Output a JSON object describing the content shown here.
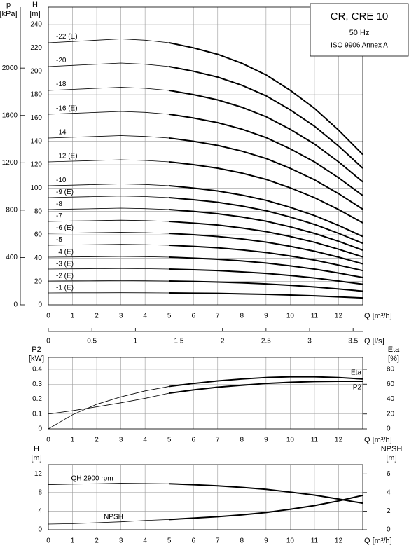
{
  "chart_data": [
    {
      "type": "line",
      "title": "CR, CRE 10",
      "subtitle": "50 Hz",
      "annotation": "ISO 9906 Annex A",
      "ylabel": "H",
      "ylabel_unit": "[m]",
      "y2label": "p",
      "y2label_unit": "[kPa]",
      "xlabel": "Q [m³/h]",
      "x2label": "Q [l/s]",
      "x": [
        0,
        1,
        2,
        3,
        4,
        5,
        6,
        7,
        8,
        9,
        10,
        11,
        12,
        13
      ],
      "xlim": [
        0,
        13
      ],
      "xticks": [
        0,
        1,
        2,
        3,
        4,
        5,
        6,
        7,
        8,
        9,
        10,
        11,
        12
      ],
      "x2lim": [
        0,
        3.611
      ],
      "x2ticks": [
        0.0,
        0.5,
        1.0,
        1.5,
        2.0,
        2.5,
        3.0,
        3.5
      ],
      "ylim": [
        0,
        255
      ],
      "yticks": [
        0,
        20,
        40,
        60,
        80,
        100,
        120,
        140,
        160,
        180,
        200,
        220,
        240
      ],
      "y2lim": [
        0,
        2516
      ],
      "y2ticks": [
        0,
        400,
        800,
        1200,
        1600,
        2000
      ],
      "grid": true,
      "color": "#000000",
      "series": [
        {
          "name": "-22 (E)",
          "values": [
            224.4,
            225.5,
            226.6,
            227.7,
            226.6,
            224.4,
            220,
            214.5,
            206.8,
            196.9,
            183.7,
            168.3,
            149.6,
            128.7
          ]
        },
        {
          "name": "-20",
          "values": [
            204,
            205,
            206,
            207,
            206,
            204,
            200,
            195,
            188,
            179,
            167,
            153,
            136,
            117
          ]
        },
        {
          "name": "-18",
          "values": [
            183.6,
            184.5,
            185.4,
            186.3,
            185.4,
            183.6,
            180,
            175.5,
            169.2,
            161.1,
            150.3,
            137.7,
            122.4,
            105.3
          ]
        },
        {
          "name": "-16 (E)",
          "values": [
            163.2,
            164,
            164.8,
            165.6,
            164.8,
            163.2,
            160,
            156,
            150.4,
            143.2,
            133.6,
            122.4,
            108.8,
            93.6
          ]
        },
        {
          "name": "-14",
          "values": [
            142.8,
            143.5,
            144.2,
            144.9,
            144.2,
            142.8,
            140,
            136.5,
            131.6,
            125.3,
            116.9,
            107.1,
            95.2,
            81.9
          ]
        },
        {
          "name": "-12 (E)",
          "values": [
            122.4,
            123,
            123.6,
            124.2,
            123.6,
            122.4,
            120,
            117,
            112.8,
            107.4,
            100.2,
            91.8,
            81.6,
            70.2
          ]
        },
        {
          "name": "-10",
          "values": [
            102,
            102.5,
            103,
            103.5,
            103,
            102,
            100,
            97.5,
            94,
            89.5,
            83.5,
            76.5,
            68,
            58.5
          ]
        },
        {
          "name": "-9 (E)",
          "values": [
            91.8,
            92.3,
            92.7,
            93.2,
            92.7,
            91.8,
            90,
            87.8,
            84.6,
            80.6,
            75.2,
            68.9,
            61.2,
            52.7
          ]
        },
        {
          "name": "-8",
          "values": [
            81.6,
            82,
            82.4,
            82.8,
            82.4,
            81.6,
            80,
            78,
            75.2,
            71.6,
            66.8,
            61.2,
            54.4,
            46.8
          ]
        },
        {
          "name": "-7",
          "values": [
            71.4,
            71.8,
            72.1,
            72.5,
            72.1,
            71.4,
            70,
            68.3,
            65.8,
            62.7,
            58.5,
            53.6,
            47.6,
            41
          ]
        },
        {
          "name": "-6 (E)",
          "values": [
            61.2,
            61.5,
            61.8,
            62.1,
            61.8,
            61.2,
            60,
            58.5,
            56.4,
            53.7,
            50.1,
            45.9,
            40.8,
            35.1
          ]
        },
        {
          "name": "-5",
          "values": [
            51,
            51.3,
            51.5,
            51.8,
            51.5,
            51,
            50,
            48.8,
            47,
            44.8,
            41.8,
            38.3,
            34,
            29.3
          ]
        },
        {
          "name": "-4 (E)",
          "values": [
            40.8,
            41,
            41.2,
            41.4,
            41.2,
            40.8,
            40,
            39,
            37.6,
            35.8,
            33.4,
            30.6,
            27.2,
            23.4
          ]
        },
        {
          "name": "-3 (E)",
          "values": [
            30.6,
            30.8,
            30.9,
            31.1,
            30.9,
            30.6,
            30,
            29.3,
            28.2,
            26.9,
            25.1,
            23,
            20.4,
            17.6
          ]
        },
        {
          "name": "-2 (E)",
          "values": [
            20.4,
            20.5,
            20.6,
            20.7,
            20.6,
            20.4,
            20,
            19.5,
            18.8,
            17.9,
            16.7,
            15.3,
            13.6,
            11.7
          ]
        },
        {
          "name": "-1 (E)",
          "values": [
            10.2,
            10.3,
            10.3,
            10.4,
            10.3,
            10.2,
            10,
            9.8,
            9.4,
            9,
            8.4,
            7.7,
            6.8,
            5.9
          ]
        }
      ]
    },
    {
      "type": "line",
      "ylabel": "P2",
      "ylabel_unit": "[kW]",
      "y2label": "Eta",
      "y2label_unit": "[%]",
      "xlabel": "Q [m³/h]",
      "x": [
        0,
        1,
        2,
        3,
        4,
        5,
        6,
        7,
        8,
        9,
        10,
        11,
        12,
        13
      ],
      "xlim": [
        0,
        13
      ],
      "xticks": [
        0,
        1,
        2,
        3,
        4,
        5,
        6,
        7,
        8,
        9,
        10,
        11,
        12
      ],
      "ylim": [
        0,
        0.48
      ],
      "yticks": [
        0,
        0.1,
        0.2,
        0.3,
        0.4
      ],
      "y2lim": [
        0,
        96
      ],
      "y2ticks": [
        0,
        20,
        40,
        60,
        80
      ],
      "grid": true,
      "color": "#000000",
      "series": [
        {
          "name": "Eta",
          "axis": "y2",
          "values": [
            0,
            19,
            33,
            43,
            51,
            57,
            61,
            64.5,
            67,
            69,
            70,
            70,
            69,
            67
          ]
        },
        {
          "name": "P2",
          "values": [
            0.1,
            0.122,
            0.148,
            0.175,
            0.205,
            0.24,
            0.262,
            0.28,
            0.293,
            0.305,
            0.313,
            0.318,
            0.32,
            0.32
          ]
        }
      ]
    },
    {
      "type": "line",
      "ylabel": "H",
      "ylabel_unit": "[m]",
      "y2label": "NPSH",
      "y2label_unit": "[m]",
      "xlabel": "Q [m³/h]",
      "x": [
        0,
        1,
        2,
        3,
        4,
        5,
        6,
        7,
        8,
        9,
        10,
        11,
        12,
        13
      ],
      "xlim": [
        0,
        13
      ],
      "xticks": [
        0,
        1,
        2,
        3,
        4,
        5,
        6,
        7,
        8,
        9,
        10,
        11,
        12
      ],
      "ylim": [
        0,
        14
      ],
      "yticks": [
        0,
        4,
        8,
        12
      ],
      "y2lim": [
        0,
        7
      ],
      "y2ticks": [
        0,
        2,
        4,
        6
      ],
      "grid": true,
      "color": "#000000",
      "series": [
        {
          "name": "QH 2900 rpm",
          "values": [
            9.7,
            9.8,
            9.9,
            10,
            9.95,
            9.9,
            9.7,
            9.45,
            9.1,
            8.7,
            8.1,
            7.45,
            6.6,
            5.7
          ]
        },
        {
          "name": "NPSH",
          "axis": "y2",
          "values": [
            0.6,
            0.65,
            0.75,
            0.85,
            1,
            1.1,
            1.25,
            1.4,
            1.6,
            1.85,
            2.2,
            2.6,
            3.1,
            3.7
          ]
        }
      ]
    }
  ]
}
